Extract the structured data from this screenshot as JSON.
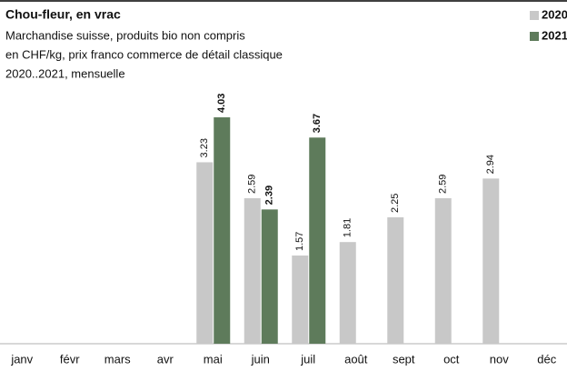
{
  "chart_data": {
    "type": "bar",
    "title": "Chou-fleur, en vrac",
    "subtitle": [
      "Marchandise suisse, produits bio non compris",
      "en CHF/kg, prix franco commerce de détail classique",
      "2020..2021, mensuelle"
    ],
    "categories": [
      "janv",
      "févr",
      "mars",
      "avr",
      "mai",
      "juin",
      "juil",
      "août",
      "sept",
      "oct",
      "nov",
      "déc"
    ],
    "series": [
      {
        "name": "2020",
        "color": "#c8c8c8",
        "values": [
          null,
          null,
          null,
          null,
          3.23,
          2.59,
          1.57,
          1.81,
          2.25,
          2.59,
          2.94,
          null
        ]
      },
      {
        "name": "2021",
        "color": "#5e7b5b",
        "values": [
          null,
          null,
          null,
          null,
          4.03,
          2.39,
          3.67,
          null,
          null,
          null,
          null,
          null
        ]
      }
    ],
    "ylim": [
      0,
      4.5
    ]
  }
}
